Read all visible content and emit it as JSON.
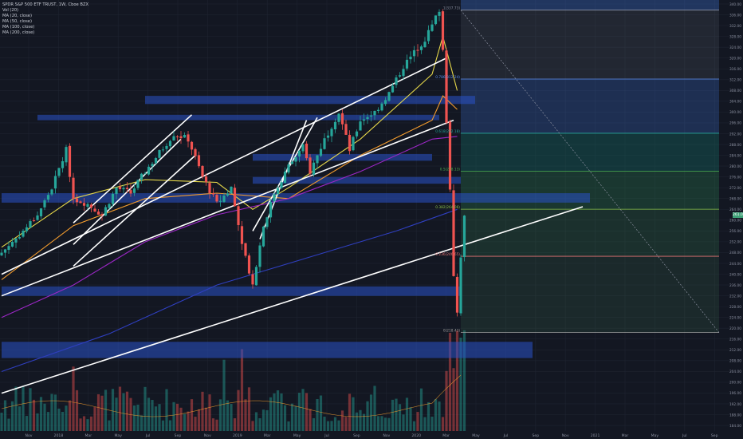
{
  "legend": {
    "title": "SPDR S&P 500 ETF TRUST, 1W, Cboe BZX",
    "indicators": [
      "Vol (20)",
      "MA (20, close)",
      "MA (50, close)",
      "MA (100, close)",
      "MA (200, close)"
    ]
  },
  "colors": {
    "background": "#131722",
    "grid": "#1e2330",
    "up": "#26a69a",
    "down": "#ef5350",
    "ma20": "#e6d84a",
    "ma50": "#f39c2d",
    "ma100": "#9b27c5",
    "ma200": "#2f3fbf",
    "zone": "#2a52c8",
    "trendline": "#ffffff",
    "price_tag": "#3fa278"
  },
  "last_price_label": "261.06",
  "chart_data": {
    "type": "candlestick",
    "title": "SPDR S&P 500 ETF TRUST, 1W, Cboe BZX",
    "x_tick_labels": [
      "Nov",
      "2018",
      "Mar",
      "May",
      "Jul",
      "Sep",
      "Nov",
      "2019",
      "Mar",
      "May",
      "Jul",
      "Sep",
      "Nov",
      "2020",
      "Mar",
      "May",
      "Jul",
      "Sep",
      "Nov",
      "2021",
      "Mar",
      "May",
      "Jul",
      "Sep"
    ],
    "y_tick_labels": [
      "340.00",
      "336.00",
      "332.00",
      "328.00",
      "324.00",
      "320.00",
      "316.00",
      "312.00",
      "308.00",
      "304.00",
      "300.00",
      "296.00",
      "292.00",
      "288.00",
      "284.00",
      "280.00",
      "276.00",
      "272.00",
      "268.00",
      "264.00",
      "260.00",
      "256.00",
      "252.00",
      "248.00",
      "244.00",
      "240.00",
      "236.00",
      "232.00",
      "228.00",
      "224.00",
      "220.00",
      "216.00",
      "212.00",
      "208.00",
      "204.00",
      "200.00",
      "196.00",
      "192.00",
      "188.00",
      "184.00"
    ],
    "ylim": [
      182,
      341
    ],
    "grid": true,
    "price_points": [
      {
        "week": 0,
        "close": 248
      },
      {
        "week": 6,
        "close": 256
      },
      {
        "week": 10,
        "close": 262
      },
      {
        "week": 14,
        "close": 272
      },
      {
        "week": 18,
        "close": 286
      },
      {
        "week": 20,
        "close": 268
      },
      {
        "week": 24,
        "close": 266
      },
      {
        "week": 28,
        "close": 262
      },
      {
        "week": 32,
        "close": 272
      },
      {
        "week": 36,
        "close": 270
      },
      {
        "week": 40,
        "close": 278
      },
      {
        "week": 44,
        "close": 285
      },
      {
        "week": 48,
        "close": 292
      },
      {
        "week": 52,
        "close": 290
      },
      {
        "week": 56,
        "close": 276
      },
      {
        "week": 60,
        "close": 266
      },
      {
        "week": 64,
        "close": 272
      },
      {
        "week": 67,
        "close": 252
      },
      {
        "week": 70,
        "close": 236
      },
      {
        "week": 73,
        "close": 258
      },
      {
        "week": 76,
        "close": 270
      },
      {
        "week": 80,
        "close": 280
      },
      {
        "week": 84,
        "close": 287
      },
      {
        "week": 86,
        "close": 278
      },
      {
        "week": 90,
        "close": 290
      },
      {
        "week": 94,
        "close": 300
      },
      {
        "week": 97,
        "close": 286
      },
      {
        "week": 100,
        "close": 297
      },
      {
        "week": 104,
        "close": 300
      },
      {
        "week": 108,
        "close": 307
      },
      {
        "week": 112,
        "close": 317
      },
      {
        "week": 115,
        "close": 322
      },
      {
        "week": 118,
        "close": 327
      },
      {
        "week": 120,
        "close": 332
      },
      {
        "week": 122,
        "close": 338
      },
      {
        "week": 123,
        "close": 323
      },
      {
        "week": 124,
        "close": 297
      },
      {
        "week": 125,
        "close": 272
      },
      {
        "week": 126,
        "close": 240
      },
      {
        "week": 127,
        "close": 226
      },
      {
        "week": 128,
        "close": 247
      },
      {
        "week": 129,
        "close": 261
      }
    ],
    "moving_averages": [
      {
        "name": "MA (20, close)",
        "points": [
          [
            0,
            250
          ],
          [
            20,
            268
          ],
          [
            40,
            275
          ],
          [
            60,
            274
          ],
          [
            70,
            264
          ],
          [
            80,
            272
          ],
          [
            100,
            290
          ],
          [
            120,
            314
          ],
          [
            123,
            328
          ],
          [
            127,
            308
          ]
        ]
      },
      {
        "name": "MA (50, close)",
        "points": [
          [
            0,
            238
          ],
          [
            20,
            258
          ],
          [
            40,
            268
          ],
          [
            60,
            270
          ],
          [
            80,
            268
          ],
          [
            100,
            284
          ],
          [
            120,
            297
          ],
          [
            123,
            306
          ],
          [
            127,
            301
          ]
        ]
      },
      {
        "name": "MA (100, close)",
        "points": [
          [
            0,
            224
          ],
          [
            20,
            236
          ],
          [
            40,
            252
          ],
          [
            60,
            262
          ],
          [
            80,
            268
          ],
          [
            100,
            278
          ],
          [
            120,
            290
          ],
          [
            127,
            291
          ]
        ]
      },
      {
        "name": "MA (200, close)",
        "points": [
          [
            0,
            204
          ],
          [
            30,
            218
          ],
          [
            60,
            236
          ],
          [
            90,
            248
          ],
          [
            110,
            256
          ],
          [
            127,
            264
          ]
        ]
      }
    ],
    "fib_levels": [
      {
        "label": "1(337.73)",
        "value": 337.73
      },
      {
        "label": "0.786(312.24)",
        "value": 312.24
      },
      {
        "label": "0.618(292.18)",
        "value": 292.18
      },
      {
        "label": "0.5(278.13)",
        "value": 278.13
      },
      {
        "label": "0.382(264.06)",
        "value": 264.06
      },
      {
        "label": "0.236(246.65)",
        "value": 246.65
      },
      {
        "label": "0(218.43)",
        "value": 218.43
      }
    ],
    "zones": [
      {
        "week_from": 40,
        "week_to": 132,
        "low": 303,
        "high": 306
      },
      {
        "week_from": 10,
        "week_to": 122,
        "low": 297,
        "high": 299
      },
      {
        "week_from": 70,
        "week_to": 120,
        "low": 282,
        "high": 284.5
      },
      {
        "week_from": 70,
        "week_to": 128,
        "low": 273.5,
        "high": 276
      },
      {
        "week_from": 0,
        "week_to": 164,
        "low": 266.5,
        "high": 270
      },
      {
        "week_from": 0,
        "week_to": 128,
        "low": 232,
        "high": 235.5
      },
      {
        "week_from": 0,
        "week_to": 148,
        "low": 209,
        "high": 215
      }
    ]
  }
}
